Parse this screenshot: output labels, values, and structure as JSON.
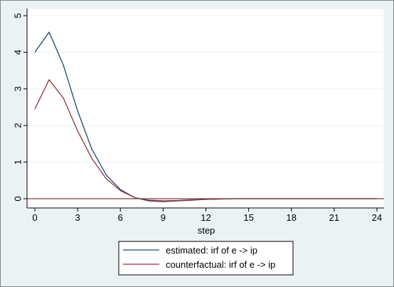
{
  "chart_data": {
    "type": "line",
    "xlabel": "step",
    "ylabel": "",
    "title": "",
    "xlim": [
      0,
      24
    ],
    "ylim": [
      0,
      5
    ],
    "xticks": [
      0,
      3,
      6,
      9,
      12,
      15,
      18,
      21,
      24
    ],
    "yticks": [
      0,
      1,
      2,
      3,
      4,
      5
    ],
    "x": [
      0,
      1,
      2,
      3,
      4,
      5,
      6,
      7,
      8,
      9,
      10,
      11,
      12,
      13,
      14,
      15,
      16,
      17,
      18,
      19,
      20,
      21,
      22,
      23,
      24
    ],
    "series": [
      {
        "name": "estimated: irf of e -> ip",
        "color": "#1a476f",
        "values": [
          4.0,
          4.55,
          3.65,
          2.4,
          1.35,
          0.65,
          0.25,
          0.03,
          -0.06,
          -0.08,
          -0.06,
          -0.04,
          -0.02,
          -0.01,
          0.0,
          0.0,
          0.0,
          0.0,
          0.0,
          0.0,
          0.0,
          0.0,
          0.0,
          0.0,
          0.0
        ]
      },
      {
        "name": "counterfactual: irf of e -> ip",
        "color": "#90353b",
        "values": [
          2.45,
          3.25,
          2.75,
          1.85,
          1.1,
          0.55,
          0.22,
          0.03,
          -0.04,
          -0.06,
          -0.05,
          -0.03,
          -0.02,
          -0.01,
          0.0,
          0.0,
          0.0,
          0.0,
          0.0,
          0.0,
          0.0,
          0.0,
          0.0,
          0.0,
          0.0
        ]
      }
    ],
    "reference_line": {
      "y": 0,
      "color": "#90353b"
    },
    "grid": true,
    "legend_position": "bottom",
    "colors": {
      "background": "#eaf2f3",
      "plot_background": "#ffffff",
      "grid": "#eaf2f3"
    }
  }
}
